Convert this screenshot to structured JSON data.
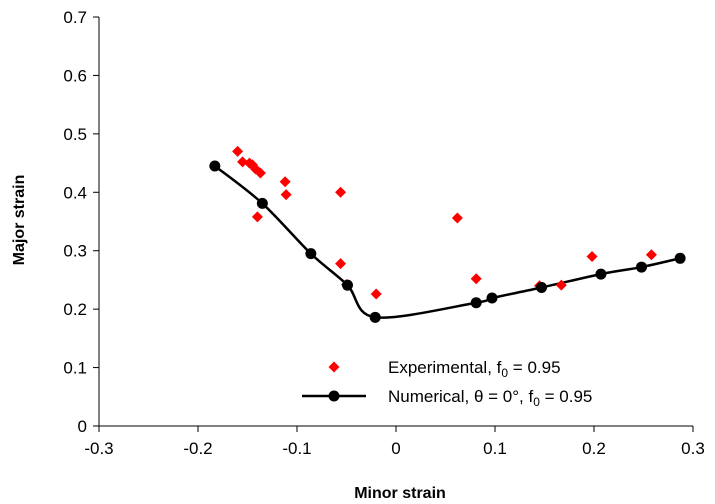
{
  "chart_data": {
    "type": "scatter",
    "xlabel": "Minor strain",
    "ylabel": "Major strain",
    "xlim": [
      -0.3,
      0.3
    ],
    "ylim": [
      0,
      0.7
    ],
    "x_ticks": [
      -0.3,
      -0.2,
      -0.1,
      0,
      0.1,
      0.2,
      0.3
    ],
    "y_ticks": [
      0,
      0.1,
      0.2,
      0.3,
      0.4,
      0.5,
      0.6,
      0.7
    ],
    "x_tick_labels": [
      "-0.3",
      "-0.2",
      "-0.1",
      "0",
      "0.1",
      "0.2",
      "0.3"
    ],
    "y_tick_labels": [
      "0",
      "0.1",
      "0.2",
      "0.3",
      "0.4",
      "0.5",
      "0.6",
      "0.7"
    ],
    "grid": false,
    "legend_position": "bottom-right",
    "series": [
      {
        "name": "Experimental, f0 = 0.95",
        "legend_parts": {
          "pre": "Experimental, f",
          "sub": "0",
          "post": " = 0.95"
        },
        "kind": "markers",
        "marker": "diamond",
        "color": "#ff0000",
        "points": [
          [
            -0.16,
            0.47
          ],
          [
            -0.155,
            0.452
          ],
          [
            -0.148,
            0.45
          ],
          [
            -0.145,
            0.447
          ],
          [
            -0.142,
            0.44
          ],
          [
            -0.137,
            0.433
          ],
          [
            -0.14,
            0.358
          ],
          [
            -0.112,
            0.418
          ],
          [
            -0.111,
            0.396
          ],
          [
            -0.056,
            0.4
          ],
          [
            -0.056,
            0.278
          ],
          [
            -0.05,
            0.242
          ],
          [
            -0.02,
            0.226
          ],
          [
            0.062,
            0.356
          ],
          [
            0.081,
            0.252
          ],
          [
            0.145,
            0.24
          ],
          [
            0.167,
            0.241
          ],
          [
            0.198,
            0.29
          ],
          [
            0.258,
            0.293
          ]
        ]
      },
      {
        "name": "Numerical, θ = 0°, f0 = 0.95",
        "legend_parts": {
          "pre": "Numerical, θ = 0°, f",
          "sub": "0",
          "post": " = 0.95"
        },
        "kind": "line-markers",
        "marker": "circle",
        "color": "#000000",
        "points": [
          [
            -0.183,
            0.445
          ],
          [
            -0.135,
            0.381
          ],
          [
            -0.086,
            0.295
          ],
          [
            -0.049,
            0.241
          ],
          [
            -0.021,
            0.186
          ],
          [
            0.081,
            0.211
          ],
          [
            0.097,
            0.219
          ],
          [
            0.147,
            0.237
          ],
          [
            0.207,
            0.26
          ],
          [
            0.248,
            0.272
          ],
          [
            0.287,
            0.287
          ]
        ]
      }
    ]
  }
}
